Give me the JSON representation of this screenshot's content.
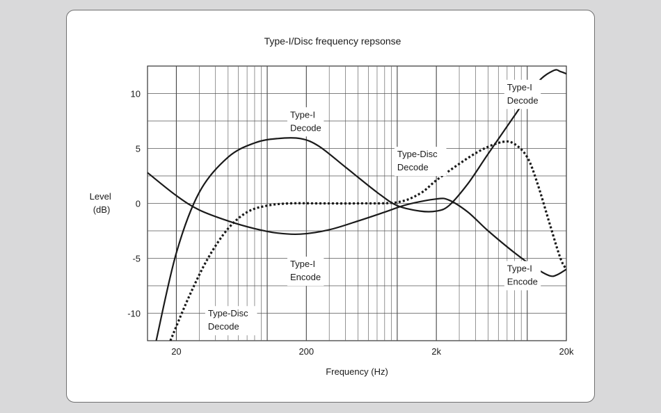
{
  "chart_data": {
    "type": "line",
    "title": "Type-I/Disc frequency repsonse",
    "xlabel": "Frequency (Hz)",
    "ylabel": [
      "Level",
      "(dB)"
    ],
    "x_scale": "log",
    "xlim": [
      12,
      20000
    ],
    "ylim": [
      -12.5,
      12.5
    ],
    "x_ticks": [
      {
        "value": 20,
        "label": "20"
      },
      {
        "value": 200,
        "label": "200"
      },
      {
        "value": 2000,
        "label": "2k"
      },
      {
        "value": 20000,
        "label": "20k"
      }
    ],
    "y_ticks": [
      {
        "value": 10,
        "label": "10"
      },
      {
        "value": 5,
        "label": "5"
      },
      {
        "value": 0,
        "label": "0"
      },
      {
        "value": -5,
        "label": "-5"
      },
      {
        "value": -10,
        "label": "-10"
      }
    ],
    "grid": true,
    "series": [
      {
        "id": "type-i-decode",
        "style": "solid",
        "x": [
          14,
          20,
          30,
          50,
          80,
          120,
          180,
          250,
          400,
          700,
          1000,
          1500,
          2000,
          2500,
          3500,
          5000,
          8000,
          12000,
          16000,
          18000,
          20000
        ],
        "y": [
          -12.5,
          -4.5,
          1,
          4.2,
          5.5,
          5.9,
          5.9,
          5.2,
          3.3,
          1.0,
          -0.2,
          -0.7,
          -0.7,
          -0.2,
          1.8,
          4.5,
          8.0,
          11.0,
          12.1,
          12.0,
          11.8
        ]
      },
      {
        "id": "type-i-encode",
        "style": "solid",
        "x": [
          12,
          20,
          30,
          50,
          80,
          120,
          180,
          300,
          500,
          800,
          1200,
          2000,
          2500,
          3500,
          5000,
          8000,
          12000,
          15000,
          17000,
          20000
        ],
        "y": [
          2.8,
          0.7,
          -0.6,
          -1.6,
          -2.3,
          -2.7,
          -2.8,
          -2.4,
          -1.6,
          -0.8,
          -0.1,
          0.4,
          0.3,
          -0.8,
          -2.5,
          -4.5,
          -6.0,
          -6.6,
          -6.5,
          -6.0
        ]
      },
      {
        "id": "type-disc-decode",
        "style": "dotted",
        "x": [
          18,
          25,
          35,
          50,
          70,
          100,
          150,
          250,
          500,
          1000,
          1500,
          2000,
          3000,
          4500,
          6500,
          8000,
          10000,
          12000,
          15000,
          18000,
          20000
        ],
        "y": [
          -12.5,
          -8.5,
          -5,
          -2.3,
          -0.8,
          -0.2,
          0,
          0,
          0,
          0.1,
          0.9,
          2.1,
          3.6,
          4.9,
          5.6,
          5.4,
          4.2,
          1.8,
          -2.0,
          -5.0,
          -6.0
        ]
      }
    ],
    "annotations": [
      {
        "series": "type-i-decode",
        "lines": [
          "Type-I",
          "Decode"
        ],
        "x": 150,
        "y": 7.8
      },
      {
        "series": "type-disc-decode",
        "lines": [
          "Type-Disc",
          "Decode"
        ],
        "x": 1000,
        "y": 4.2
      },
      {
        "series": "type-i-decode",
        "lines": [
          "Type-I",
          "Decode"
        ],
        "x": 7000,
        "y": 10.3
      },
      {
        "series": "type-i-encode",
        "lines": [
          "Type-I",
          "Encode"
        ],
        "x": 150,
        "y": -5.8
      },
      {
        "series": "type-i-encode",
        "lines": [
          "Type-I",
          "Encode"
        ],
        "x": 7000,
        "y": -6.2
      },
      {
        "series": "type-disc-decode",
        "lines": [
          "Type-Disc",
          "Decode"
        ],
        "x": 35,
        "y": -10.3
      }
    ]
  }
}
